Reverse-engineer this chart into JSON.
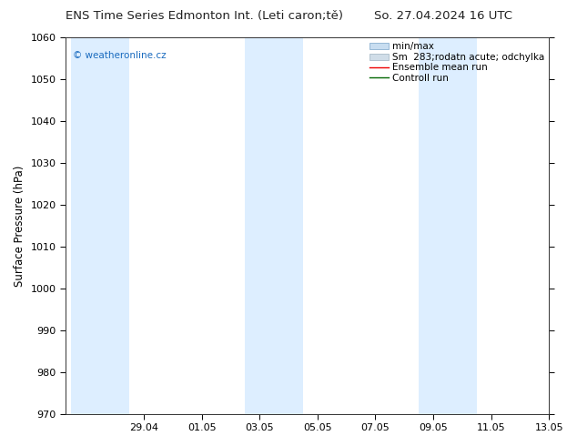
{
  "title_left": "ENS Time Series Edmonton Int. (Leti caron;tě)",
  "title_right": "So. 27.04.2024 16 UTC",
  "ylabel": "Surface Pressure (hPa)",
  "ylim": [
    970,
    1060
  ],
  "yticks": [
    970,
    980,
    990,
    1000,
    1010,
    1020,
    1030,
    1040,
    1050,
    1060
  ],
  "xtick_labels": [
    "29.04",
    "01.05",
    "03.05",
    "05.05",
    "07.05",
    "09.05",
    "11.05",
    "13.05"
  ],
  "xlim_start_days": -0.7,
  "xlim_end_days": 15.5,
  "band_starts_days": [
    -0.5,
    5.5,
    11.5
  ],
  "band_ends_days": [
    1.5,
    7.5,
    13.5
  ],
  "band_color": "#ddeeff",
  "bg_color": "#ffffff",
  "plot_bg": "#f5f9ff",
  "watermark_text": "© weatheronline.cz",
  "watermark_color": "#1a6bbf",
  "legend_label_minmax": "min/max",
  "legend_label_std": "Sm  283;rodatn acute; odchylka",
  "legend_label_mean": "Ensemble mean run",
  "legend_label_ctrl": "Controll run",
  "title_fontsize": 9.5,
  "axis_fontsize": 8.5,
  "tick_fontsize": 8,
  "legend_fontsize": 7.5
}
